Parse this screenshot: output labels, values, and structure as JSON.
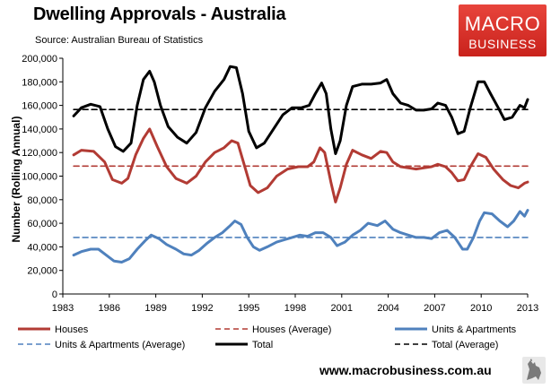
{
  "header": {
    "title": "Dwelling Approvals - Australia",
    "subtitle": "Source: Australian Bureau of Statistics"
  },
  "logo": {
    "line1": "MACRO",
    "line2": "BUSINESS"
  },
  "footer": {
    "url": "www.macrobusiness.com.au"
  },
  "colors": {
    "houses": "#b23b34",
    "units": "#4f81bd",
    "total": "#000000",
    "logo_red": "#d62e26"
  },
  "chart_data": {
    "type": "line",
    "title": "Dwelling Approvals - Australia",
    "ylabel": "Number (Rolling Annual)",
    "xlabel": "",
    "xlim": [
      1983,
      2013
    ],
    "ylim": [
      0,
      200000
    ],
    "x_ticks": [
      1983,
      1986,
      1989,
      1992,
      1995,
      1998,
      2001,
      2004,
      2007,
      2010,
      2013
    ],
    "x_tick_labels": [
      "1983",
      "1986",
      "1989",
      "1992",
      "1995",
      "1998",
      "2001",
      "2004",
      "2007",
      "2010",
      "2013"
    ],
    "y_ticks": [
      0,
      20000,
      40000,
      60000,
      80000,
      100000,
      120000,
      140000,
      160000,
      180000,
      200000
    ],
    "y_tick_labels": [
      "0",
      "20,000",
      "40,000",
      "60,000",
      "80,000",
      "100,000",
      "120,000",
      "140,000",
      "160,000",
      "180,000",
      "200,000"
    ],
    "grid": false,
    "legend_position": "bottom",
    "series": [
      {
        "name": "Houses",
        "style": "solid",
        "color": "#b23b34",
        "points": [
          [
            1983.7,
            118000
          ],
          [
            1984.2,
            122000
          ],
          [
            1985.0,
            121000
          ],
          [
            1985.7,
            112000
          ],
          [
            1986.2,
            97000
          ],
          [
            1986.8,
            94000
          ],
          [
            1987.2,
            98000
          ],
          [
            1987.7,
            118000
          ],
          [
            1988.2,
            132000
          ],
          [
            1988.6,
            140000
          ],
          [
            1989.1,
            125000
          ],
          [
            1989.7,
            108000
          ],
          [
            1990.3,
            98000
          ],
          [
            1991.0,
            94000
          ],
          [
            1991.6,
            100000
          ],
          [
            1992.2,
            112000
          ],
          [
            1992.8,
            120000
          ],
          [
            1993.4,
            124000
          ],
          [
            1993.9,
            130000
          ],
          [
            1994.3,
            128000
          ],
          [
            1994.7,
            110000
          ],
          [
            1995.1,
            92000
          ],
          [
            1995.6,
            86000
          ],
          [
            1996.2,
            90000
          ],
          [
            1996.8,
            100000
          ],
          [
            1997.5,
            106000
          ],
          [
            1998.2,
            108000
          ],
          [
            1998.8,
            108000
          ],
          [
            1999.2,
            112000
          ],
          [
            1999.6,
            124000
          ],
          [
            1999.9,
            120000
          ],
          [
            2000.3,
            95000
          ],
          [
            2000.6,
            78000
          ],
          [
            2000.9,
            90000
          ],
          [
            2001.3,
            110000
          ],
          [
            2001.7,
            122000
          ],
          [
            2002.3,
            118000
          ],
          [
            2002.9,
            115000
          ],
          [
            2003.5,
            121000
          ],
          [
            2003.9,
            120000
          ],
          [
            2004.3,
            112000
          ],
          [
            2004.8,
            108000
          ],
          [
            2005.3,
            107000
          ],
          [
            2005.8,
            106000
          ],
          [
            2006.3,
            107000
          ],
          [
            2006.8,
            108000
          ],
          [
            2007.2,
            110000
          ],
          [
            2007.7,
            108000
          ],
          [
            2008.1,
            103000
          ],
          [
            2008.5,
            96000
          ],
          [
            2008.9,
            97000
          ],
          [
            2009.3,
            108000
          ],
          [
            2009.8,
            119000
          ],
          [
            2010.3,
            116000
          ],
          [
            2010.8,
            106000
          ],
          [
            2011.4,
            97000
          ],
          [
            2011.9,
            92000
          ],
          [
            2012.4,
            90000
          ],
          [
            2012.8,
            94000
          ],
          [
            2013.0,
            95000
          ]
        ]
      },
      {
        "name": "Houses (Average)",
        "style": "dashed",
        "color": "#b23b34",
        "points": [
          [
            1983.7,
            108500
          ],
          [
            2013.0,
            108500
          ]
        ]
      },
      {
        "name": "Units & Apartments",
        "style": "solid",
        "color": "#4f81bd",
        "points": [
          [
            1983.7,
            33000
          ],
          [
            1984.2,
            36000
          ],
          [
            1984.8,
            38000
          ],
          [
            1985.3,
            38000
          ],
          [
            1985.8,
            33000
          ],
          [
            1986.3,
            28000
          ],
          [
            1986.8,
            27000
          ],
          [
            1987.3,
            30000
          ],
          [
            1987.8,
            38000
          ],
          [
            1988.3,
            45000
          ],
          [
            1988.7,
            50000
          ],
          [
            1989.2,
            47000
          ],
          [
            1989.7,
            42000
          ],
          [
            1990.3,
            38000
          ],
          [
            1990.8,
            34000
          ],
          [
            1991.3,
            33000
          ],
          [
            1991.8,
            37000
          ],
          [
            1992.3,
            43000
          ],
          [
            1992.8,
            48000
          ],
          [
            1993.3,
            52000
          ],
          [
            1993.8,
            58000
          ],
          [
            1994.1,
            62000
          ],
          [
            1994.5,
            59000
          ],
          [
            1994.9,
            48000
          ],
          [
            1995.3,
            40000
          ],
          [
            1995.7,
            37000
          ],
          [
            1996.2,
            40000
          ],
          [
            1996.8,
            44000
          ],
          [
            1997.3,
            46000
          ],
          [
            1997.8,
            48000
          ],
          [
            1998.3,
            50000
          ],
          [
            1998.8,
            49000
          ],
          [
            1999.3,
            52000
          ],
          [
            1999.8,
            52000
          ],
          [
            2000.3,
            48000
          ],
          [
            2000.7,
            41000
          ],
          [
            2001.2,
            44000
          ],
          [
            2001.7,
            50000
          ],
          [
            2002.2,
            54000
          ],
          [
            2002.7,
            60000
          ],
          [
            2003.3,
            58000
          ],
          [
            2003.8,
            62000
          ],
          [
            2004.3,
            55000
          ],
          [
            2004.8,
            52000
          ],
          [
            2005.3,
            50000
          ],
          [
            2005.8,
            48000
          ],
          [
            2006.3,
            48000
          ],
          [
            2006.8,
            47000
          ],
          [
            2007.3,
            52000
          ],
          [
            2007.8,
            54000
          ],
          [
            2008.3,
            48000
          ],
          [
            2008.8,
            38000
          ],
          [
            2009.1,
            38000
          ],
          [
            2009.5,
            48000
          ],
          [
            2009.9,
            62000
          ],
          [
            2010.2,
            69000
          ],
          [
            2010.7,
            68000
          ],
          [
            2011.2,
            62000
          ],
          [
            2011.7,
            57000
          ],
          [
            2012.1,
            62000
          ],
          [
            2012.5,
            70000
          ],
          [
            2012.8,
            66000
          ],
          [
            2013.0,
            71000
          ]
        ]
      },
      {
        "name": "Units & Apartments (Average)",
        "style": "dashed",
        "color": "#4f81bd",
        "points": [
          [
            1983.7,
            48000
          ],
          [
            2013.0,
            48000
          ]
        ]
      },
      {
        "name": "Total",
        "style": "solid",
        "color": "#000000",
        "points": [
          [
            1983.7,
            151000
          ],
          [
            1984.2,
            158000
          ],
          [
            1984.8,
            161000
          ],
          [
            1985.4,
            159000
          ],
          [
            1985.9,
            140000
          ],
          [
            1986.4,
            125000
          ],
          [
            1986.9,
            121000
          ],
          [
            1987.4,
            128000
          ],
          [
            1987.8,
            160000
          ],
          [
            1988.2,
            182000
          ],
          [
            1988.6,
            189000
          ],
          [
            1988.9,
            180000
          ],
          [
            1989.3,
            160000
          ],
          [
            1989.8,
            142000
          ],
          [
            1990.4,
            133000
          ],
          [
            1991.0,
            128000
          ],
          [
            1991.6,
            137000
          ],
          [
            1992.2,
            158000
          ],
          [
            1992.8,
            172000
          ],
          [
            1993.4,
            182000
          ],
          [
            1993.8,
            193000
          ],
          [
            1994.2,
            192000
          ],
          [
            1994.6,
            170000
          ],
          [
            1995.0,
            138000
          ],
          [
            1995.5,
            124000
          ],
          [
            1996.0,
            128000
          ],
          [
            1996.6,
            140000
          ],
          [
            1997.2,
            152000
          ],
          [
            1997.8,
            158000
          ],
          [
            1998.4,
            158000
          ],
          [
            1998.9,
            160000
          ],
          [
            1999.3,
            170000
          ],
          [
            1999.7,
            179000
          ],
          [
            2000.0,
            170000
          ],
          [
            2000.3,
            140000
          ],
          [
            2000.6,
            119000
          ],
          [
            2000.9,
            130000
          ],
          [
            2001.3,
            160000
          ],
          [
            2001.7,
            176000
          ],
          [
            2002.3,
            178000
          ],
          [
            2002.9,
            178000
          ],
          [
            2003.5,
            179000
          ],
          [
            2003.9,
            182000
          ],
          [
            2004.3,
            170000
          ],
          [
            2004.8,
            162000
          ],
          [
            2005.3,
            160000
          ],
          [
            2005.8,
            156000
          ],
          [
            2006.3,
            156000
          ],
          [
            2006.8,
            157000
          ],
          [
            2007.2,
            162000
          ],
          [
            2007.7,
            160000
          ],
          [
            2008.1,
            150000
          ],
          [
            2008.5,
            136000
          ],
          [
            2008.9,
            138000
          ],
          [
            2009.3,
            158000
          ],
          [
            2009.8,
            180000
          ],
          [
            2010.2,
            180000
          ],
          [
            2010.6,
            170000
          ],
          [
            2011.1,
            158000
          ],
          [
            2011.5,
            148000
          ],
          [
            2012.0,
            150000
          ],
          [
            2012.5,
            160000
          ],
          [
            2012.8,
            158000
          ],
          [
            2013.0,
            165000
          ]
        ]
      },
      {
        "name": "Total (Average)",
        "style": "dashed",
        "color": "#000000",
        "points": [
          [
            1983.7,
            156500
          ],
          [
            2013.0,
            156500
          ]
        ]
      }
    ],
    "legend": [
      {
        "label": "Houses",
        "series": 0
      },
      {
        "label": "Houses (Average)",
        "series": 1
      },
      {
        "label": "Units & Apartments",
        "series": 2
      },
      {
        "label": "Units & Apartments (Average)",
        "series": 3
      },
      {
        "label": "Total",
        "series": 4
      },
      {
        "label": "Total (Average)",
        "series": 5
      }
    ]
  }
}
